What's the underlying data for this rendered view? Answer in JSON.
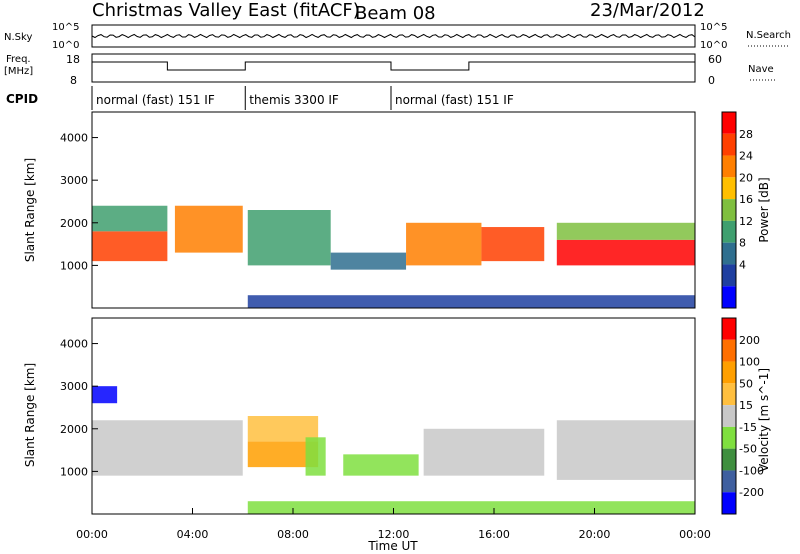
{
  "header": {
    "title": "Christmas Valley East (fitACF)",
    "beam": "Beam 08",
    "date": "23/Mar/2012"
  },
  "noise_panel": {
    "left_label": "N.Sky",
    "left_ticks": [
      "10^5",
      "10^0"
    ],
    "right_label": "N.Search",
    "right_ticks": [
      "10^5",
      "10^0"
    ]
  },
  "freq_panel": {
    "left_label_1": "Freq.",
    "left_label_2": "[MHz]",
    "left_ticks": [
      "18",
      "8"
    ],
    "right_label": "Nave",
    "right_ticks": [
      "60",
      "0"
    ]
  },
  "cpid": {
    "label": "CPID",
    "segments": [
      {
        "label": "normal (fast) 151 IF",
        "start_h": 0,
        "end_h": 6.1
      },
      {
        "label": "themis 3300 IF",
        "start_h": 6.1,
        "end_h": 11.9
      },
      {
        "label": "normal (fast) 151 IF",
        "start_h": 11.9,
        "end_h": 24
      }
    ]
  },
  "colors": {
    "power_scale": [
      "#0000ff",
      "#1f3fa0",
      "#2f6f8f",
      "#3f9f6f",
      "#7fbf3f",
      "#ffbf00",
      "#ff7f00",
      "#ff4000",
      "#ff0000"
    ],
    "velocity_scale": [
      "#0000ff",
      "#3f5f9f",
      "#3f8f3f",
      "#7fdf3f",
      "#c8c8c8",
      "#ffbf3f",
      "#ff9f00",
      "#ff6f00",
      "#ff0000"
    ]
  },
  "chart_data": [
    {
      "type": "heatmap",
      "name": "power",
      "ylabel": "Slant Range [km]",
      "ylim": [
        0,
        4600
      ],
      "y_ticks": [
        1000,
        2000,
        3000,
        4000
      ],
      "xlim": [
        0,
        24
      ],
      "colorbar_label": "Power [dB]",
      "colorbar_ticks": [
        "28",
        "24",
        "20",
        "16",
        "12",
        "8",
        "4"
      ],
      "bands": [
        {
          "x0": 0.0,
          "x1": 3.0,
          "y0": 1100,
          "y1": 1800,
          "level": 7
        },
        {
          "x0": 0.0,
          "x1": 3.0,
          "y0": 1800,
          "y1": 2400,
          "level": 3
        },
        {
          "x0": 3.3,
          "x1": 6.0,
          "y0": 1300,
          "y1": 2400,
          "level": 6
        },
        {
          "x0": 6.2,
          "x1": 9.5,
          "y0": 1000,
          "y1": 2300,
          "level": 3
        },
        {
          "x0": 9.5,
          "x1": 12.5,
          "y0": 900,
          "y1": 1300,
          "level": 2
        },
        {
          "x0": 12.5,
          "x1": 15.5,
          "y0": 1000,
          "y1": 2000,
          "level": 6
        },
        {
          "x0": 15.5,
          "x1": 18.0,
          "y0": 1100,
          "y1": 1900,
          "level": 7
        },
        {
          "x0": 18.5,
          "x1": 24.0,
          "y0": 1000,
          "y1": 1600,
          "level": 8
        },
        {
          "x0": 18.5,
          "x1": 24.0,
          "y0": 1600,
          "y1": 2000,
          "level": 4
        },
        {
          "x0": 6.2,
          "x1": 24.0,
          "y0": 0,
          "y1": 300,
          "level": 1
        }
      ]
    },
    {
      "type": "heatmap",
      "name": "velocity",
      "ylabel": "Slant Range [km]",
      "ylim": [
        0,
        4600
      ],
      "y_ticks": [
        1000,
        2000,
        3000,
        4000
      ],
      "xlim": [
        0,
        24
      ],
      "colorbar_label": "Velocity [m s^-1]",
      "colorbar_ticks": [
        "200",
        "100",
        "50",
        "15",
        "-15",
        "-50",
        "-100",
        "-200"
      ],
      "bands": [
        {
          "x0": 0.0,
          "x1": 6.0,
          "y0": 900,
          "y1": 2200,
          "level": 4
        },
        {
          "x0": 0.0,
          "x1": 1.0,
          "y0": 2600,
          "y1": 3000,
          "level": 0
        },
        {
          "x0": 6.2,
          "x1": 9.0,
          "y0": 1100,
          "y1": 1700,
          "level": 6
        },
        {
          "x0": 6.2,
          "x1": 9.0,
          "y0": 1700,
          "y1": 2300,
          "level": 5
        },
        {
          "x0": 8.5,
          "x1": 9.3,
          "y0": 900,
          "y1": 1800,
          "level": 3
        },
        {
          "x0": 10.0,
          "x1": 13.0,
          "y0": 900,
          "y1": 1400,
          "level": 3
        },
        {
          "x0": 13.2,
          "x1": 18.0,
          "y0": 900,
          "y1": 2000,
          "level": 4
        },
        {
          "x0": 18.5,
          "x1": 24.0,
          "y0": 800,
          "y1": 2200,
          "level": 4
        },
        {
          "x0": 6.2,
          "x1": 24.0,
          "y0": 0,
          "y1": 300,
          "level": 3
        }
      ]
    }
  ],
  "x_axis": {
    "label": "Time UT",
    "ticks": [
      "00:00",
      "04:00",
      "08:00",
      "12:00",
      "16:00",
      "20:00",
      "00:00"
    ]
  }
}
